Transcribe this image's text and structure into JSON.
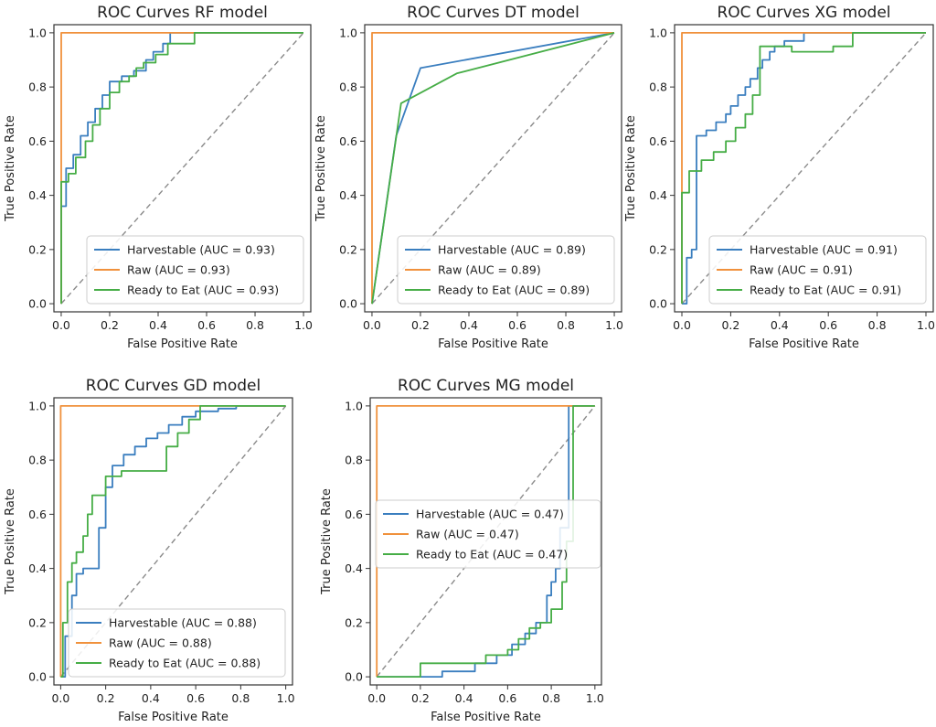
{
  "figure": {
    "colors": {
      "Harvestable": "#3a7ebf",
      "Raw": "#f0913c",
      "Ready to Eat": "#46ad46",
      "diagonal": "#8a8a8a",
      "axes": "#333333"
    }
  },
  "chart_data": [
    {
      "type": "line",
      "title": "ROC Curves RF model",
      "xlabel": "False Positive Rate",
      "ylabel": "True Positive Rate",
      "xlim": [
        -0.03,
        1.03
      ],
      "ylim": [
        -0.03,
        1.03
      ],
      "xticks": [
        "0.0",
        "0.2",
        "0.4",
        "0.6",
        "0.8",
        "1.0"
      ],
      "yticks": [
        "0.0",
        "0.2",
        "0.4",
        "0.6",
        "0.8",
        "1.0"
      ],
      "legend_position": "lower-right",
      "grid": false,
      "diagonal": true,
      "series": [
        {
          "name": "Harvestable",
          "auc_label": "Harvestable (AUC = 0.93)",
          "x": [
            0,
            0,
            0.02,
            0.02,
            0.05,
            0.05,
            0.08,
            0.08,
            0.11,
            0.11,
            0.14,
            0.14,
            0.17,
            0.17,
            0.2,
            0.2,
            0.25,
            0.25,
            0.3,
            0.3,
            0.35,
            0.35,
            0.38,
            0.38,
            0.42,
            0.42,
            0.45,
            0.45,
            1
          ],
          "y": [
            0,
            0.36,
            0.36,
            0.5,
            0.5,
            0.55,
            0.55,
            0.62,
            0.62,
            0.67,
            0.67,
            0.72,
            0.72,
            0.77,
            0.77,
            0.82,
            0.82,
            0.84,
            0.84,
            0.86,
            0.86,
            0.9,
            0.9,
            0.93,
            0.93,
            0.96,
            0.96,
            1,
            1
          ]
        },
        {
          "name": "Raw",
          "auc_label": "Raw (AUC = 0.93)",
          "x": [
            0,
            0,
            1
          ],
          "y": [
            0,
            1,
            1
          ]
        },
        {
          "name": "Ready to Eat",
          "auc_label": "Ready to Eat (AUC = 0.93)",
          "x": [
            0,
            0,
            0.03,
            0.03,
            0.06,
            0.06,
            0.1,
            0.1,
            0.13,
            0.13,
            0.16,
            0.16,
            0.2,
            0.2,
            0.24,
            0.24,
            0.28,
            0.28,
            0.31,
            0.31,
            0.34,
            0.34,
            0.39,
            0.39,
            0.44,
            0.44,
            0.55,
            0.55,
            1
          ],
          "y": [
            0,
            0.45,
            0.45,
            0.48,
            0.48,
            0.54,
            0.54,
            0.6,
            0.6,
            0.66,
            0.66,
            0.72,
            0.72,
            0.78,
            0.78,
            0.82,
            0.82,
            0.84,
            0.84,
            0.87,
            0.87,
            0.89,
            0.89,
            0.92,
            0.92,
            0.96,
            0.96,
            1,
            1
          ]
        }
      ]
    },
    {
      "type": "line",
      "title": "ROC Curves DT model",
      "xlabel": "False Positive Rate",
      "ylabel": "True Positive Rate",
      "xlim": [
        -0.03,
        1.03
      ],
      "ylim": [
        -0.03,
        1.03
      ],
      "xticks": [
        "0.0",
        "0.2",
        "0.4",
        "0.6",
        "0.8",
        "1.0"
      ],
      "yticks": [
        "0.0",
        "0.2",
        "0.4",
        "0.6",
        "0.8",
        "1.0"
      ],
      "legend_position": "lower-right",
      "grid": false,
      "diagonal": true,
      "series": [
        {
          "name": "Harvestable",
          "auc_label": "Harvestable (AUC = 0.89)",
          "x": [
            0,
            0.1,
            0.2,
            1
          ],
          "y": [
            0,
            0.62,
            0.87,
            1
          ]
        },
        {
          "name": "Raw",
          "auc_label": "Raw (AUC = 0.89)",
          "x": [
            0,
            0,
            1
          ],
          "y": [
            0,
            1,
            1
          ]
        },
        {
          "name": "Ready to Eat",
          "auc_label": "Ready to Eat (AUC = 0.89)",
          "x": [
            0,
            0.12,
            0.35,
            1
          ],
          "y": [
            0,
            0.74,
            0.85,
            1
          ]
        }
      ]
    },
    {
      "type": "line",
      "title": "ROC Curves XG model",
      "xlabel": "False Positive Rate",
      "ylabel": "True Positive Rate",
      "xlim": [
        -0.03,
        1.03
      ],
      "ylim": [
        -0.03,
        1.03
      ],
      "xticks": [
        "0.0",
        "0.2",
        "0.4",
        "0.6",
        "0.8",
        "1.0"
      ],
      "yticks": [
        "0.0",
        "0.2",
        "0.4",
        "0.6",
        "0.8",
        "1.0"
      ],
      "legend_position": "lower-right",
      "grid": false,
      "diagonal": true,
      "series": [
        {
          "name": "Harvestable",
          "auc_label": "Harvestable (AUC = 0.91)",
          "x": [
            0,
            0.02,
            0.02,
            0.04,
            0.04,
            0.06,
            0.06,
            0.1,
            0.1,
            0.14,
            0.14,
            0.18,
            0.18,
            0.2,
            0.2,
            0.23,
            0.23,
            0.26,
            0.26,
            0.28,
            0.28,
            0.31,
            0.31,
            0.33,
            0.33,
            0.36,
            0.36,
            0.38,
            0.38,
            0.42,
            0.42,
            0.5,
            0.5,
            1
          ],
          "y": [
            0,
            0,
            0.17,
            0.17,
            0.2,
            0.2,
            0.62,
            0.62,
            0.64,
            0.64,
            0.67,
            0.67,
            0.7,
            0.7,
            0.73,
            0.73,
            0.77,
            0.77,
            0.8,
            0.8,
            0.83,
            0.83,
            0.87,
            0.87,
            0.9,
            0.9,
            0.93,
            0.93,
            0.95,
            0.95,
            0.97,
            0.97,
            1,
            1
          ]
        },
        {
          "name": "Raw",
          "auc_label": "Raw (AUC = 0.91)",
          "x": [
            0,
            0,
            1
          ],
          "y": [
            0,
            1,
            1
          ]
        },
        {
          "name": "Ready to Eat",
          "auc_label": "Ready to Eat (AUC = 0.91)",
          "x": [
            0,
            0,
            0.03,
            0.03,
            0.08,
            0.08,
            0.13,
            0.13,
            0.18,
            0.18,
            0.22,
            0.22,
            0.26,
            0.26,
            0.29,
            0.29,
            0.32,
            0.32,
            0.45,
            0.45,
            0.62,
            0.62,
            0.7,
            0.7,
            1
          ],
          "y": [
            0,
            0.41,
            0.41,
            0.49,
            0.49,
            0.53,
            0.53,
            0.56,
            0.56,
            0.6,
            0.6,
            0.65,
            0.65,
            0.7,
            0.7,
            0.77,
            0.77,
            0.95,
            0.95,
            0.93,
            0.93,
            0.95,
            0.95,
            1,
            1
          ]
        }
      ]
    },
    {
      "type": "line",
      "title": "ROC Curves GD model",
      "xlabel": "False Positive Rate",
      "ylabel": "True Positive Rate",
      "xlim": [
        -0.03,
        1.03
      ],
      "ylim": [
        -0.03,
        1.03
      ],
      "xticks": [
        "0.0",
        "0.2",
        "0.4",
        "0.6",
        "0.8",
        "1.0"
      ],
      "yticks": [
        "0.0",
        "0.2",
        "0.4",
        "0.6",
        "0.8",
        "1.0"
      ],
      "legend_position": "lower-right",
      "grid": false,
      "diagonal": true,
      "series": [
        {
          "name": "Harvestable",
          "auc_label": "Harvestable (AUC = 0.88)",
          "x": [
            0,
            0.02,
            0.02,
            0.05,
            0.05,
            0.07,
            0.07,
            0.1,
            0.1,
            0.17,
            0.17,
            0.2,
            0.2,
            0.23,
            0.23,
            0.28,
            0.28,
            0.33,
            0.33,
            0.38,
            0.38,
            0.43,
            0.43,
            0.48,
            0.48,
            0.54,
            0.54,
            0.6,
            0.6,
            0.7,
            0.7,
            0.78,
            0.78,
            1
          ],
          "y": [
            0,
            0,
            0.15,
            0.15,
            0.3,
            0.3,
            0.38,
            0.38,
            0.4,
            0.4,
            0.55,
            0.55,
            0.7,
            0.7,
            0.78,
            0.78,
            0.82,
            0.82,
            0.85,
            0.85,
            0.88,
            0.88,
            0.9,
            0.9,
            0.93,
            0.93,
            0.96,
            0.96,
            0.98,
            0.98,
            0.99,
            0.99,
            1,
            1
          ]
        },
        {
          "name": "Raw",
          "auc_label": "Raw (AUC = 0.88)",
          "x": [
            0,
            0,
            1
          ],
          "y": [
            0,
            1,
            1
          ]
        },
        {
          "name": "Ready to Eat",
          "auc_label": "Ready to Eat (AUC = 0.88)",
          "x": [
            0,
            0.01,
            0.01,
            0.03,
            0.03,
            0.05,
            0.05,
            0.07,
            0.07,
            0.1,
            0.1,
            0.12,
            0.12,
            0.14,
            0.14,
            0.2,
            0.2,
            0.27,
            0.27,
            0.47,
            0.47,
            0.52,
            0.52,
            0.57,
            0.57,
            0.62,
            0.62,
            1
          ],
          "y": [
            0,
            0,
            0.2,
            0.2,
            0.35,
            0.35,
            0.42,
            0.42,
            0.46,
            0.46,
            0.52,
            0.52,
            0.6,
            0.6,
            0.67,
            0.67,
            0.74,
            0.74,
            0.76,
            0.76,
            0.85,
            0.85,
            0.9,
            0.9,
            0.95,
            0.95,
            1,
            1
          ]
        }
      ]
    },
    {
      "type": "line",
      "title": "ROC Curves MG model",
      "xlabel": "False Positive Rate",
      "ylabel": "True Positive Rate",
      "xlim": [
        -0.03,
        1.03
      ],
      "ylim": [
        -0.03,
        1.03
      ],
      "xticks": [
        "0.0",
        "0.2",
        "0.4",
        "0.6",
        "0.8",
        "1.0"
      ],
      "yticks": [
        "0.0",
        "0.2",
        "0.4",
        "0.6",
        "0.8",
        "1.0"
      ],
      "legend_position": "center-left",
      "grid": false,
      "diagonal": true,
      "series": [
        {
          "name": "Harvestable",
          "auc_label": "Harvestable (AUC = 0.47)",
          "x": [
            0,
            0.3,
            0.3,
            0.45,
            0.45,
            0.55,
            0.55,
            0.62,
            0.62,
            0.68,
            0.68,
            0.73,
            0.73,
            0.78,
            0.78,
            0.8,
            0.8,
            0.82,
            0.82,
            0.84,
            0.84,
            0.88,
            0.88,
            1
          ],
          "y": [
            0,
            0,
            0.02,
            0.02,
            0.05,
            0.05,
            0.08,
            0.08,
            0.12,
            0.12,
            0.16,
            0.16,
            0.2,
            0.2,
            0.3,
            0.3,
            0.35,
            0.35,
            0.4,
            0.4,
            0.55,
            0.55,
            1,
            1
          ]
        },
        {
          "name": "Raw",
          "auc_label": "Raw (AUC = 0.47)",
          "x": [
            0,
            0,
            1
          ],
          "y": [
            0,
            1,
            1
          ]
        },
        {
          "name": "Ready to Eat",
          "auc_label": "Ready to Eat (AUC = 0.47)",
          "x": [
            0,
            0.2,
            0.2,
            0.5,
            0.5,
            0.6,
            0.6,
            0.65,
            0.65,
            0.7,
            0.7,
            0.75,
            0.75,
            0.8,
            0.8,
            0.85,
            0.85,
            0.87,
            0.87,
            0.9,
            0.9,
            1
          ],
          "y": [
            0,
            0,
            0.05,
            0.05,
            0.08,
            0.08,
            0.1,
            0.1,
            0.14,
            0.14,
            0.18,
            0.18,
            0.2,
            0.2,
            0.25,
            0.25,
            0.35,
            0.35,
            0.5,
            0.5,
            1,
            1
          ]
        }
      ]
    }
  ]
}
